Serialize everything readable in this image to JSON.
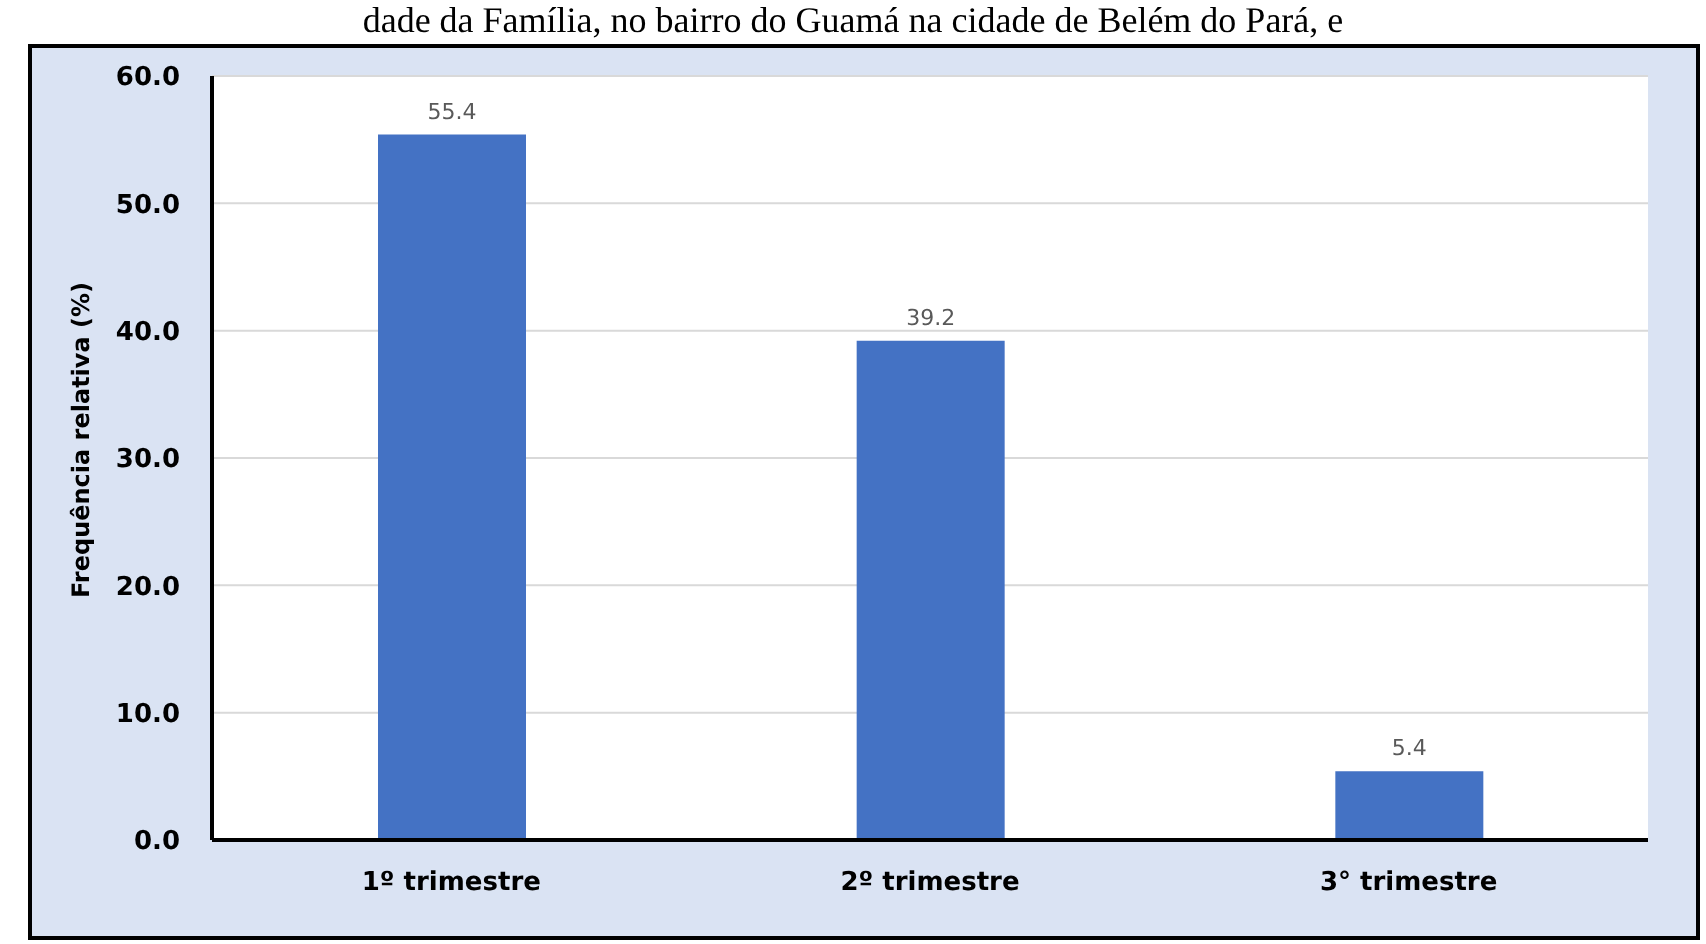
{
  "chart_data": {
    "type": "bar",
    "annotations": [
      "dade da Família, no bairro do Guamá na cidade de Belém do Pará, e"
    ],
    "ylabel": "Frequência relativa (%)",
    "categories": [
      "1º trimestre",
      "2º trimestre",
      "3° trimestre"
    ],
    "values": [
      55.4,
      39.2,
      5.4
    ],
    "color": "#4472c4",
    "ylim": [
      0,
      60
    ],
    "yticks": [
      {
        "value": 0,
        "label": "0.0"
      },
      {
        "value": 10,
        "label": "10.0"
      },
      {
        "value": 20,
        "label": "20.0"
      },
      {
        "value": 30,
        "label": "30.0"
      },
      {
        "value": 40,
        "label": "40.0"
      },
      {
        "value": 50,
        "label": "50.0"
      },
      {
        "value": 60,
        "label": "60.0"
      }
    ],
    "grid": "y",
    "data_labels": true
  }
}
